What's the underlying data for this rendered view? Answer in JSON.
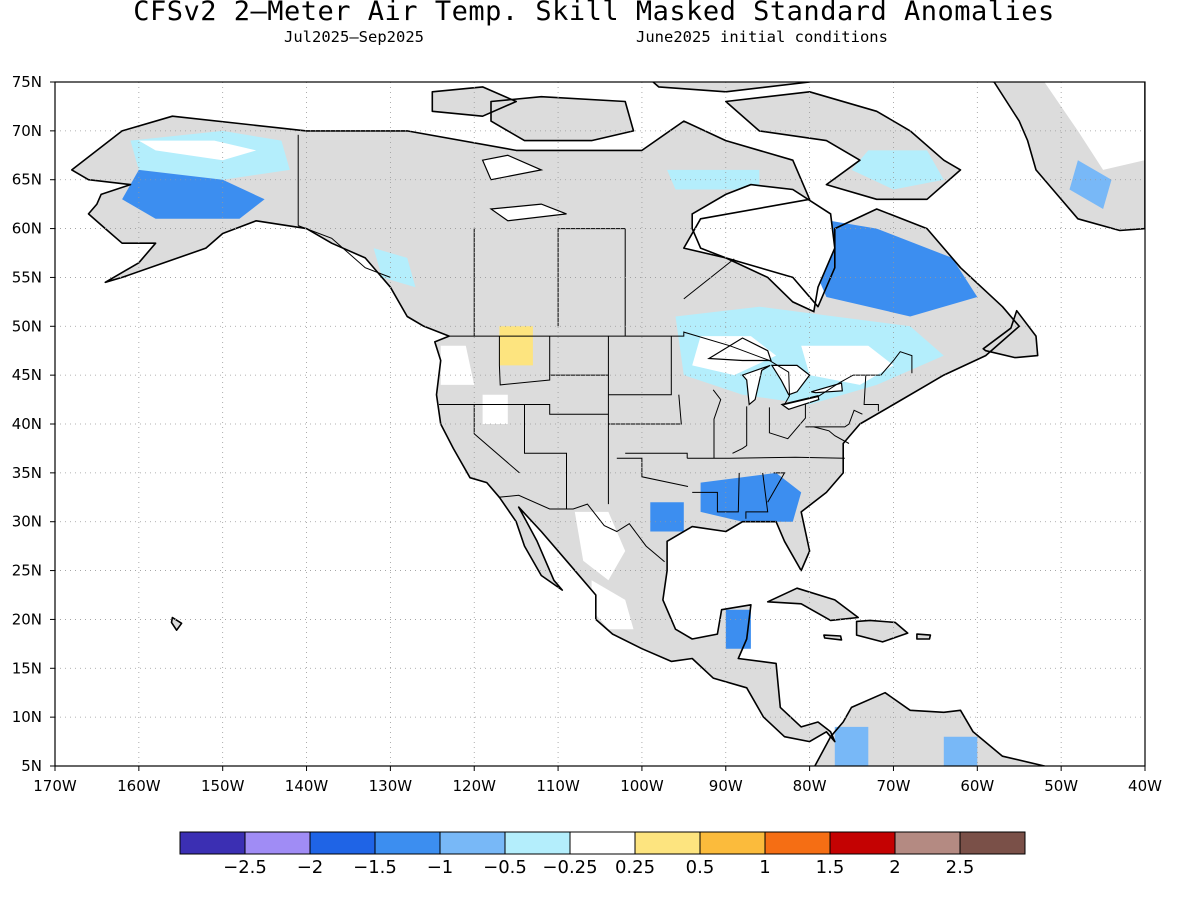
{
  "header": {
    "title": "CFSv2 2–Meter Air Temp. Skill Masked Standard Anomalies",
    "period": "Jul2025–Sep2025",
    "init": "June2025 initial conditions"
  },
  "map": {
    "lon_range": [
      -170,
      -40
    ],
    "lat_range": [
      5,
      75
    ],
    "lat_labels": [
      "75N",
      "70N",
      "65N",
      "60N",
      "55N",
      "50N",
      "45N",
      "40N",
      "35N",
      "30N",
      "25N",
      "20N",
      "15N",
      "10N",
      "5N"
    ],
    "lon_labels": [
      "170W",
      "160W",
      "150W",
      "140W",
      "130W",
      "120W",
      "110W",
      "100W",
      "90W",
      "80W",
      "70W",
      "60W",
      "50W",
      "40W"
    ],
    "grid": true,
    "land_color": "#dcdcdc",
    "anomaly_regions": [
      {
        "name": "alaska-north",
        "level": 5,
        "points": [
          [
            -161,
            69
          ],
          [
            -150,
            70
          ],
          [
            -143,
            69
          ],
          [
            -142,
            66
          ],
          [
            -150,
            65
          ],
          [
            -160,
            66
          ]
        ]
      },
      {
        "name": "alaska-north-core",
        "level": 6,
        "points": [
          [
            -160,
            69
          ],
          [
            -151,
            69
          ],
          [
            -146,
            68
          ],
          [
            -150,
            67
          ],
          [
            -158,
            68
          ]
        ]
      },
      {
        "name": "alaska-interior",
        "level": 3,
        "points": [
          [
            -160,
            66
          ],
          [
            -150,
            65
          ],
          [
            -145,
            63
          ],
          [
            -148,
            61
          ],
          [
            -158,
            61
          ],
          [
            -162,
            63
          ]
        ]
      },
      {
        "name": "greenland-east",
        "level": 6,
        "points": [
          [
            -52,
            75
          ],
          [
            -40,
            75
          ],
          [
            -40,
            67
          ],
          [
            -45,
            66
          ],
          [
            -48,
            70
          ]
        ]
      },
      {
        "name": "greenland-south",
        "level": 4,
        "points": [
          [
            -48,
            67
          ],
          [
            -44,
            65
          ],
          [
            -45,
            62
          ],
          [
            -49,
            64
          ]
        ]
      },
      {
        "name": "baffin-south",
        "level": 5,
        "points": [
          [
            -73,
            68
          ],
          [
            -66,
            68
          ],
          [
            -64,
            65
          ],
          [
            -70,
            64
          ],
          [
            -75,
            66
          ]
        ]
      },
      {
        "name": "hudson-north",
        "level": 5,
        "points": [
          [
            -97,
            66
          ],
          [
            -86,
            66
          ],
          [
            -86,
            64
          ],
          [
            -96,
            64
          ]
        ]
      },
      {
        "name": "labrador",
        "level": 3,
        "points": [
          [
            -79,
            61
          ],
          [
            -72,
            60
          ],
          [
            -63,
            57
          ],
          [
            -60,
            53
          ],
          [
            -68,
            51
          ],
          [
            -78,
            53
          ],
          [
            -80,
            57
          ]
        ]
      },
      {
        "name": "ontario-quebec",
        "level": 5,
        "points": [
          [
            -96,
            51
          ],
          [
            -86,
            52
          ],
          [
            -77,
            51
          ],
          [
            -68,
            50
          ],
          [
            -64,
            47
          ],
          [
            -72,
            44
          ],
          [
            -80,
            42
          ],
          [
            -88,
            43
          ],
          [
            -95,
            45
          ]
        ]
      },
      {
        "name": "great-lakes-core",
        "level": 6,
        "points": [
          [
            -93,
            49
          ],
          [
            -87,
            49
          ],
          [
            -84,
            47
          ],
          [
            -89,
            45
          ],
          [
            -94,
            46
          ]
        ]
      },
      {
        "name": "quebec-core",
        "level": 6,
        "points": [
          [
            -81,
            48
          ],
          [
            -73,
            48
          ],
          [
            -70,
            46
          ],
          [
            -74,
            44
          ],
          [
            -80,
            45
          ]
        ]
      },
      {
        "name": "bc-coast",
        "level": 5,
        "points": [
          [
            -132,
            58
          ],
          [
            -128,
            57
          ],
          [
            -127,
            54
          ],
          [
            -131,
            55
          ]
        ]
      },
      {
        "name": "pacific-nw",
        "level": 6,
        "points": [
          [
            -124,
            48
          ],
          [
            -121,
            48
          ],
          [
            -120,
            44
          ],
          [
            -124,
            44
          ]
        ]
      },
      {
        "name": "idaho",
        "level": 7,
        "points": [
          [
            -117,
            50
          ],
          [
            -113,
            50
          ],
          [
            -113,
            46
          ],
          [
            -117,
            46
          ]
        ]
      },
      {
        "name": "great-basin",
        "level": 6,
        "points": [
          [
            -119,
            43
          ],
          [
            -116,
            43
          ],
          [
            -116,
            40
          ],
          [
            -119,
            40
          ]
        ]
      },
      {
        "name": "southeast",
        "level": 3,
        "points": [
          [
            -93,
            34
          ],
          [
            -84,
            35
          ],
          [
            -81,
            33
          ],
          [
            -82,
            30
          ],
          [
            -88,
            30
          ],
          [
            -93,
            31
          ]
        ]
      },
      {
        "name": "texas-gulf",
        "level": 3,
        "points": [
          [
            -99,
            32
          ],
          [
            -95,
            32
          ],
          [
            -95,
            29
          ],
          [
            -99,
            29
          ]
        ]
      },
      {
        "name": "sierra-madre",
        "level": 6,
        "points": [
          [
            -108,
            31
          ],
          [
            -104,
            31
          ],
          [
            -102,
            27
          ],
          [
            -104,
            24
          ],
          [
            -107,
            26
          ]
        ]
      },
      {
        "name": "mexico-south",
        "level": 6,
        "points": [
          [
            -106,
            24
          ],
          [
            -102,
            22
          ],
          [
            -101,
            19
          ],
          [
            -104,
            19
          ],
          [
            -106,
            21
          ]
        ]
      },
      {
        "name": "yucatan",
        "level": 3,
        "points": [
          [
            -90,
            21
          ],
          [
            -87,
            21
          ],
          [
            -87,
            17
          ],
          [
            -90,
            17
          ]
        ]
      },
      {
        "name": "colombia",
        "level": 4,
        "points": [
          [
            -77,
            9
          ],
          [
            -73,
            9
          ],
          [
            -73,
            5
          ],
          [
            -77,
            5
          ]
        ]
      },
      {
        "name": "venezuela",
        "level": 4,
        "points": [
          [
            -64,
            8
          ],
          [
            -60,
            8
          ],
          [
            -60,
            5
          ],
          [
            -64,
            5
          ]
        ]
      }
    ]
  },
  "colorbar": {
    "colors": [
      "#3b2fb3",
      "#a08cf5",
      "#1f64e6",
      "#3c8ef0",
      "#78b8f7",
      "#b4eefc",
      "#ffffff",
      "#fde47f",
      "#fbbb3c",
      "#f56e14",
      "#c40202",
      "#b48a82",
      "#7a5048"
    ],
    "labels": [
      "−2.5",
      "−2",
      "−1.5",
      "−1",
      "−0.5",
      "−0.25",
      "0.25",
      "0.5",
      "1",
      "1.5",
      "2",
      "2.5"
    ]
  }
}
